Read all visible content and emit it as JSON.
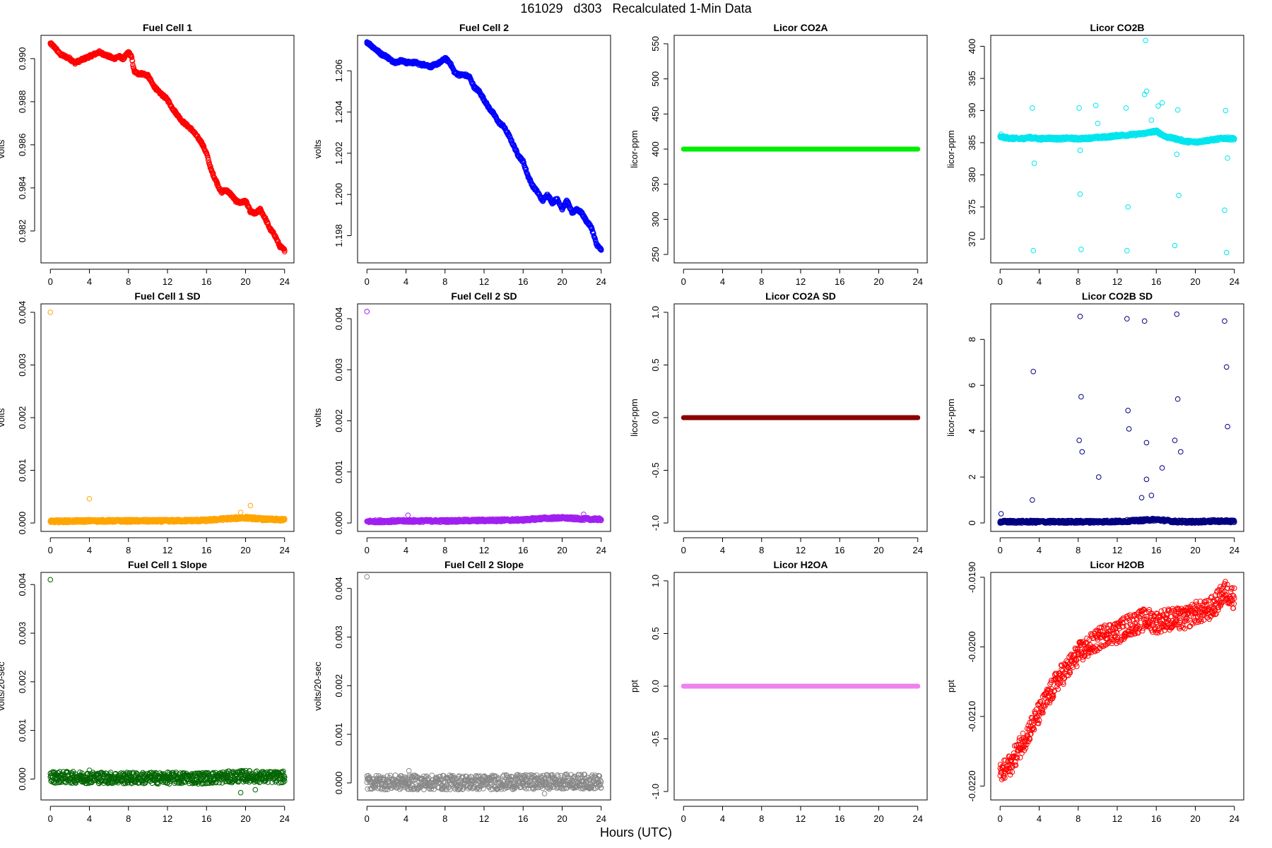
{
  "figure": {
    "title": "161029   d303   Recalculated 1-Min Data",
    "xlabel": "Hours (UTC)"
  },
  "chart_data": [
    {
      "id": "fc1",
      "type": "scatter",
      "title": "Fuel Cell 1",
      "ylabel": "volts",
      "color": "#ff0000",
      "xlim": [
        -0.96,
        24.96
      ],
      "ylim": [
        0.98052,
        0.99108
      ],
      "yticks": [
        0.982,
        0.984,
        0.986,
        0.988,
        0.99
      ],
      "yticklabels": [
        "0.982",
        "0.984",
        "0.986",
        "0.988",
        "0.990"
      ],
      "x": [
        0,
        0.5,
        1,
        1.5,
        2,
        2.5,
        3,
        3.5,
        4,
        4.5,
        5,
        5.5,
        6,
        6.5,
        7,
        7.5,
        8,
        8.3,
        8.6,
        9,
        9.5,
        10,
        10.5,
        11,
        11.5,
        12,
        12.5,
        13,
        13.5,
        14,
        14.5,
        15,
        15.5,
        16,
        16.5,
        17,
        17.5,
        18,
        18.5,
        19,
        19.5,
        20,
        20.5,
        21,
        21.5,
        22,
        22.5,
        23,
        23.5,
        24
      ],
      "y": [
        0.9907,
        0.9905,
        0.9902,
        0.9901,
        0.99,
        0.9898,
        0.9899,
        0.99,
        0.9901,
        0.9902,
        0.9903,
        0.9902,
        0.9901,
        0.99,
        0.9901,
        0.99,
        0.9903,
        0.9901,
        0.9894,
        0.9893,
        0.9893,
        0.9892,
        0.9888,
        0.9885,
        0.9883,
        0.9881,
        0.9877,
        0.9874,
        0.9871,
        0.9869,
        0.9867,
        0.9864,
        0.9861,
        0.9856,
        0.9848,
        0.9843,
        0.9838,
        0.9839,
        0.9837,
        0.9834,
        0.9833,
        0.9834,
        0.9829,
        0.9828,
        0.983,
        0.9826,
        0.9821,
        0.9818,
        0.9813,
        0.9811
      ],
      "dense": true
    },
    {
      "id": "fc2",
      "type": "scatter",
      "title": "Fuel Cell 2",
      "ylabel": "volts",
      "color": "#0000ff",
      "xlim": [
        -0.96,
        24.96
      ],
      "ylim": [
        1.19668,
        1.20772
      ],
      "yticks": [
        1.198,
        1.2,
        1.202,
        1.204,
        1.206
      ],
      "yticklabels": [
        "1.198",
        "1.200",
        "1.202",
        "1.204",
        "1.206"
      ],
      "x": [
        0,
        0.5,
        1,
        1.5,
        2,
        2.5,
        3,
        3.5,
        4,
        4.5,
        5,
        5.5,
        6,
        6.5,
        7,
        7.5,
        8,
        8.5,
        9,
        9.5,
        10,
        10.5,
        11,
        11.5,
        12,
        12.5,
        13,
        13.5,
        14,
        14.5,
        15,
        15.5,
        16,
        16.5,
        17,
        17.5,
        18,
        18.5,
        19,
        19.5,
        20,
        20.5,
        21,
        21.5,
        22,
        22.5,
        23,
        23.5,
        24
      ],
      "y": [
        1.2074,
        1.2072,
        1.207,
        1.2068,
        1.2067,
        1.2065,
        1.2064,
        1.2065,
        1.2064,
        1.2064,
        1.2064,
        1.2063,
        1.2063,
        1.2062,
        1.2063,
        1.2064,
        1.2066,
        1.2064,
        1.2059,
        1.2058,
        1.2058,
        1.2057,
        1.2052,
        1.205,
        1.2046,
        1.2042,
        1.2039,
        1.2035,
        1.2033,
        1.2029,
        1.2024,
        1.2019,
        1.2016,
        1.2009,
        1.2004,
        1.2001,
        1.1997,
        1.2,
        1.1996,
        1.1998,
        1.1993,
        1.1997,
        1.1991,
        1.1993,
        1.1991,
        1.1987,
        1.1984,
        1.1976,
        1.1973
      ],
      "dense": true
    },
    {
      "id": "co2a",
      "type": "scatter",
      "title": "Licor CO2A",
      "ylabel": "licor-ppm",
      "color": "#00ee00",
      "xlim": [
        -0.96,
        24.96
      ],
      "ylim": [
        238,
        562
      ],
      "yticks": [
        250,
        300,
        350,
        400,
        450,
        500,
        550
      ],
      "yticklabels": [
        "250",
        "300",
        "350",
        "400",
        "450",
        "500",
        "550"
      ],
      "x": [
        0,
        24
      ],
      "y": [
        400,
        400
      ],
      "dense": true,
      "thick": true
    },
    {
      "id": "co2b",
      "type": "scatter",
      "title": "Licor CO2B",
      "ylabel": "licor-ppm",
      "color": "#00e5ee",
      "xlim": [
        -0.96,
        24.96
      ],
      "ylim": [
        366.3,
        401.7
      ],
      "yticks": [
        370,
        375,
        380,
        385,
        390,
        395,
        400
      ],
      "yticklabels": [
        "370",
        "375",
        "380",
        "385",
        "390",
        "395",
        "400"
      ],
      "x": [
        0,
        1,
        2,
        3,
        4,
        5,
        6,
        7,
        8,
        9,
        10,
        11,
        12,
        13,
        14,
        15,
        16,
        17,
        18,
        19,
        20,
        21,
        22,
        23,
        24
      ],
      "y": [
        385.9,
        385.7,
        385.6,
        385.8,
        385.6,
        385.7,
        385.6,
        385.7,
        385.6,
        385.7,
        385.8,
        385.9,
        386.1,
        386.2,
        386.3,
        386.5,
        386.8,
        385.9,
        385.6,
        385.2,
        385.1,
        385.3,
        385.5,
        385.7,
        385.6
      ],
      "dense": true,
      "outliers_x": [
        0.1,
        3.3,
        3.5,
        3.4,
        8.1,
        8.2,
        8.3,
        8.2,
        9.8,
        10,
        12.9,
        13.1,
        13,
        14.8,
        15,
        14.9,
        15.5,
        16.2,
        16.6,
        17.9,
        18.1,
        18.3,
        18.2,
        23,
        23.1,
        23.2,
        23.3
      ],
      "outliers_y": [
        386.3,
        390.4,
        381.8,
        368.2,
        390.4,
        377,
        368.4,
        383.8,
        390.8,
        388,
        390.4,
        375,
        368.2,
        392.5,
        393,
        400.9,
        388.5,
        390.7,
        391.2,
        369,
        383.2,
        376.8,
        390.1,
        374.5,
        390,
        367.9,
        382.6
      ]
    },
    {
      "id": "fc1sd",
      "type": "scatter",
      "title": "Fuel Cell 1 SD",
      "ylabel": "volts",
      "color": "#ffa500",
      "xlim": [
        -0.96,
        24.96
      ],
      "ylim": [
        -0.00016,
        0.00416
      ],
      "yticks": [
        0,
        0.001,
        0.002,
        0.003,
        0.004
      ],
      "yticklabels": [
        "0.000",
        "0.001",
        "0.002",
        "0.003",
        "0.004"
      ],
      "x": [
        0,
        4,
        8,
        12,
        16,
        18,
        20,
        22,
        24
      ],
      "y": [
        3e-05,
        4e-05,
        4e-05,
        4e-05,
        5e-05,
        8e-05,
        0.0001,
        7e-05,
        6e-05
      ],
      "dense": true,
      "outliers_x": [
        0,
        4,
        20.5,
        19.5
      ],
      "outliers_y": [
        0.004,
        0.00046,
        0.00033,
        0.0002
      ]
    },
    {
      "id": "fc2sd",
      "type": "scatter",
      "title": "Fuel Cell 2 SD",
      "ylabel": "volts",
      "color": "#a020f0",
      "xlim": [
        -0.96,
        24.96
      ],
      "ylim": [
        -0.000165,
        0.00429
      ],
      "yticks": [
        0,
        0.001,
        0.002,
        0.003,
        0.004
      ],
      "yticklabels": [
        "0.000",
        "0.001",
        "0.002",
        "0.003",
        "0.004"
      ],
      "x": [
        0,
        4,
        8,
        12,
        16,
        18,
        20,
        22,
        24
      ],
      "y": [
        3e-05,
        4e-05,
        4e-05,
        5e-05,
        6e-05,
        9e-05,
        0.0001,
        8e-05,
        7e-05
      ],
      "dense": true,
      "outliers_x": [
        0,
        4.2,
        22.2
      ],
      "outliers_y": [
        0.00414,
        0.00015,
        0.00017
      ]
    },
    {
      "id": "co2asd",
      "type": "scatter",
      "title": "Licor CO2A SD",
      "ylabel": "licor-ppm",
      "color": "#8b0000",
      "xlim": [
        -0.96,
        24.96
      ],
      "ylim": [
        -1.08,
        1.08
      ],
      "yticks": [
        -1,
        -0.5,
        0,
        0.5,
        1
      ],
      "yticklabels": [
        "-1.0",
        "-0.5",
        "0.0",
        "0.5",
        "1.0"
      ],
      "x": [
        0,
        24
      ],
      "y": [
        0,
        0
      ],
      "dense": true,
      "thick": true
    },
    {
      "id": "co2bsd",
      "type": "scatter",
      "title": "Licor CO2B SD",
      "ylabel": "licor-ppm",
      "color": "#000080",
      "xlim": [
        -0.96,
        24.96
      ],
      "ylim": [
        -0.37,
        9.55
      ],
      "yticks": [
        0,
        2,
        4,
        6,
        8
      ],
      "yticklabels": [
        "0",
        "2",
        "4",
        "6",
        "8"
      ],
      "x": [
        0,
        4,
        8,
        12,
        14,
        16,
        18,
        20,
        22,
        24
      ],
      "y": [
        0.05,
        0.05,
        0.05,
        0.06,
        0.1,
        0.15,
        0.06,
        0.05,
        0.08,
        0.07
      ],
      "dense": true,
      "outliers_x": [
        0.1,
        3.3,
        3.4,
        8.2,
        8.3,
        8.1,
        8.4,
        10.1,
        13,
        13.1,
        13.2,
        14.8,
        15,
        15,
        14.5,
        15.5,
        16.6,
        17.9,
        18.1,
        18.2,
        18.5,
        23,
        23.2,
        23.3
      ],
      "outliers_y": [
        0.4,
        1,
        6.6,
        9,
        5.5,
        3.6,
        3.1,
        2,
        8.9,
        4.9,
        4.1,
        8.8,
        3.5,
        1.9,
        1.1,
        1.2,
        2.4,
        3.6,
        9.1,
        5.4,
        3.1,
        8.8,
        6.8,
        4.2
      ]
    },
    {
      "id": "fc1slope",
      "type": "scatter",
      "title": "Fuel Cell 1 Slope",
      "ylabel": "volts/20-sec",
      "color": "#006400",
      "xlim": [
        -0.96,
        24.96
      ],
      "ylim": [
        -0.00043,
        0.00425
      ],
      "yticks": [
        0,
        0.001,
        0.002,
        0.003,
        0.004
      ],
      "yticklabels": [
        "0.000",
        "0.001",
        "0.002",
        "0.003",
        "0.004"
      ],
      "x": [
        0,
        4,
        8,
        12,
        16,
        18,
        20,
        22,
        24
      ],
      "y": [
        4e-05,
        3e-05,
        2e-05,
        2e-05,
        2e-05,
        4e-05,
        6e-05,
        4e-05,
        4e-05
      ],
      "dense": true,
      "spread": 0.00012,
      "outliers_x": [
        0,
        4,
        19.5,
        21
      ],
      "outliers_y": [
        0.0041,
        0.00018,
        -0.00028,
        -0.00022
      ]
    },
    {
      "id": "fc2slope",
      "type": "scatter",
      "title": "Fuel Cell 2 Slope",
      "ylabel": "volts/20-sec",
      "color": "#888888",
      "xlim": [
        -0.96,
        24.96
      ],
      "ylim": [
        -0.00035,
        0.00433
      ],
      "yticks": [
        0,
        0.001,
        0.002,
        0.003,
        0.004
      ],
      "yticklabels": [
        "0.000",
        "0.001",
        "0.002",
        "0.003",
        "0.004"
      ],
      "x": [
        0,
        4,
        8,
        12,
        16,
        18,
        20,
        22,
        24
      ],
      "y": [
        1e-05,
        1e-05,
        1e-05,
        1e-05,
        2e-05,
        2e-05,
        3e-05,
        3e-05,
        2e-05
      ],
      "dense": true,
      "spread": 0.00015,
      "outliers_x": [
        0,
        4.3,
        18.2
      ],
      "outliers_y": [
        0.00424,
        0.00025,
        -0.00022
      ]
    },
    {
      "id": "h2oa",
      "type": "scatter",
      "title": "Licor H2OA",
      "ylabel": "ppt",
      "color": "#ee82ee",
      "xlim": [
        -0.96,
        24.96
      ],
      "ylim": [
        -1.08,
        1.08
      ],
      "yticks": [
        -1,
        -0.5,
        0,
        0.5,
        1
      ],
      "yticklabels": [
        "-1.0",
        "-0.5",
        "0.0",
        "0.5",
        "1.0"
      ],
      "x": [
        0,
        24
      ],
      "y": [
        0,
        0
      ],
      "dense": true,
      "thick": true
    },
    {
      "id": "h2ob",
      "type": "scatter",
      "title": "Licor H2OB",
      "ylabel": "ppt",
      "color": "#ff0000",
      "xlim": [
        -0.96,
        24.96
      ],
      "ylim": [
        -0.0222,
        -0.01893
      ],
      "yticks": [
        -0.022,
        -0.021,
        -0.02,
        -0.019
      ],
      "yticklabels": [
        "-0.0220",
        "-0.0210",
        "-0.0200",
        "-0.0190"
      ],
      "x": [
        0,
        1,
        2,
        3,
        4,
        5,
        6,
        7,
        8,
        9,
        10,
        11,
        12,
        13,
        14,
        15,
        16,
        17,
        18,
        19,
        20,
        21,
        22,
        23,
        24
      ],
      "y": [
        -0.02185,
        -0.0217,
        -0.02145,
        -0.0212,
        -0.02095,
        -0.0207,
        -0.02045,
        -0.0203,
        -0.0201,
        -0.02,
        -0.0199,
        -0.0198,
        -0.0198,
        -0.0197,
        -0.01965,
        -0.0196,
        -0.01965,
        -0.0196,
        -0.0196,
        -0.0196,
        -0.0195,
        -0.0195,
        -0.0194,
        -0.0192,
        -0.0193
      ],
      "dense": true,
      "spread": 0.00016
    }
  ]
}
